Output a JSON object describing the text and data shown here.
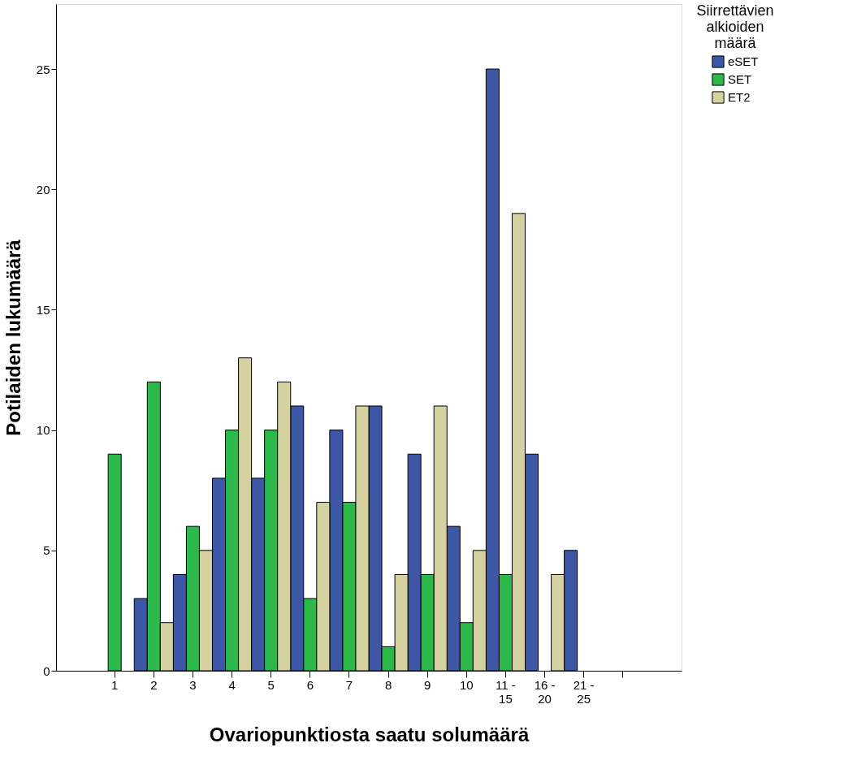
{
  "chart_data": {
    "type": "bar",
    "xlabel": "Ovariopunktiosta saatu solumäärä",
    "ylabel": "Potilaiden lukumäärä",
    "legend_title": "Siirrettävien alkioiden määrä",
    "legend": "top right",
    "categories": [
      "1",
      "2",
      "3",
      "4",
      "5",
      "6",
      "7",
      "8",
      "9",
      "10",
      "11 - 15",
      "16 - 20",
      "21 - 25",
      null
    ],
    "series": [
      {
        "name": "eSET",
        "color": "#3e56a6",
        "values": [
          null,
          3,
          4,
          8,
          8,
          11,
          10,
          11,
          9,
          6,
          25,
          9,
          5,
          null
        ]
      },
      {
        "name": "SET",
        "color": "#2db84c",
        "values": [
          9,
          12,
          6,
          10,
          10,
          3,
          7,
          1,
          4,
          2,
          4,
          null,
          null,
          null
        ]
      },
      {
        "name": "ET2",
        "color": "#d6d1a0",
        "values": [
          null,
          2,
          5,
          13,
          12,
          7,
          11,
          4,
          11,
          5,
          19,
          4,
          null,
          null
        ]
      }
    ],
    "ylim": [
      0,
      27.7
    ],
    "yticks": [
      0,
      5,
      10,
      15,
      20,
      25
    ],
    "grid": false
  }
}
